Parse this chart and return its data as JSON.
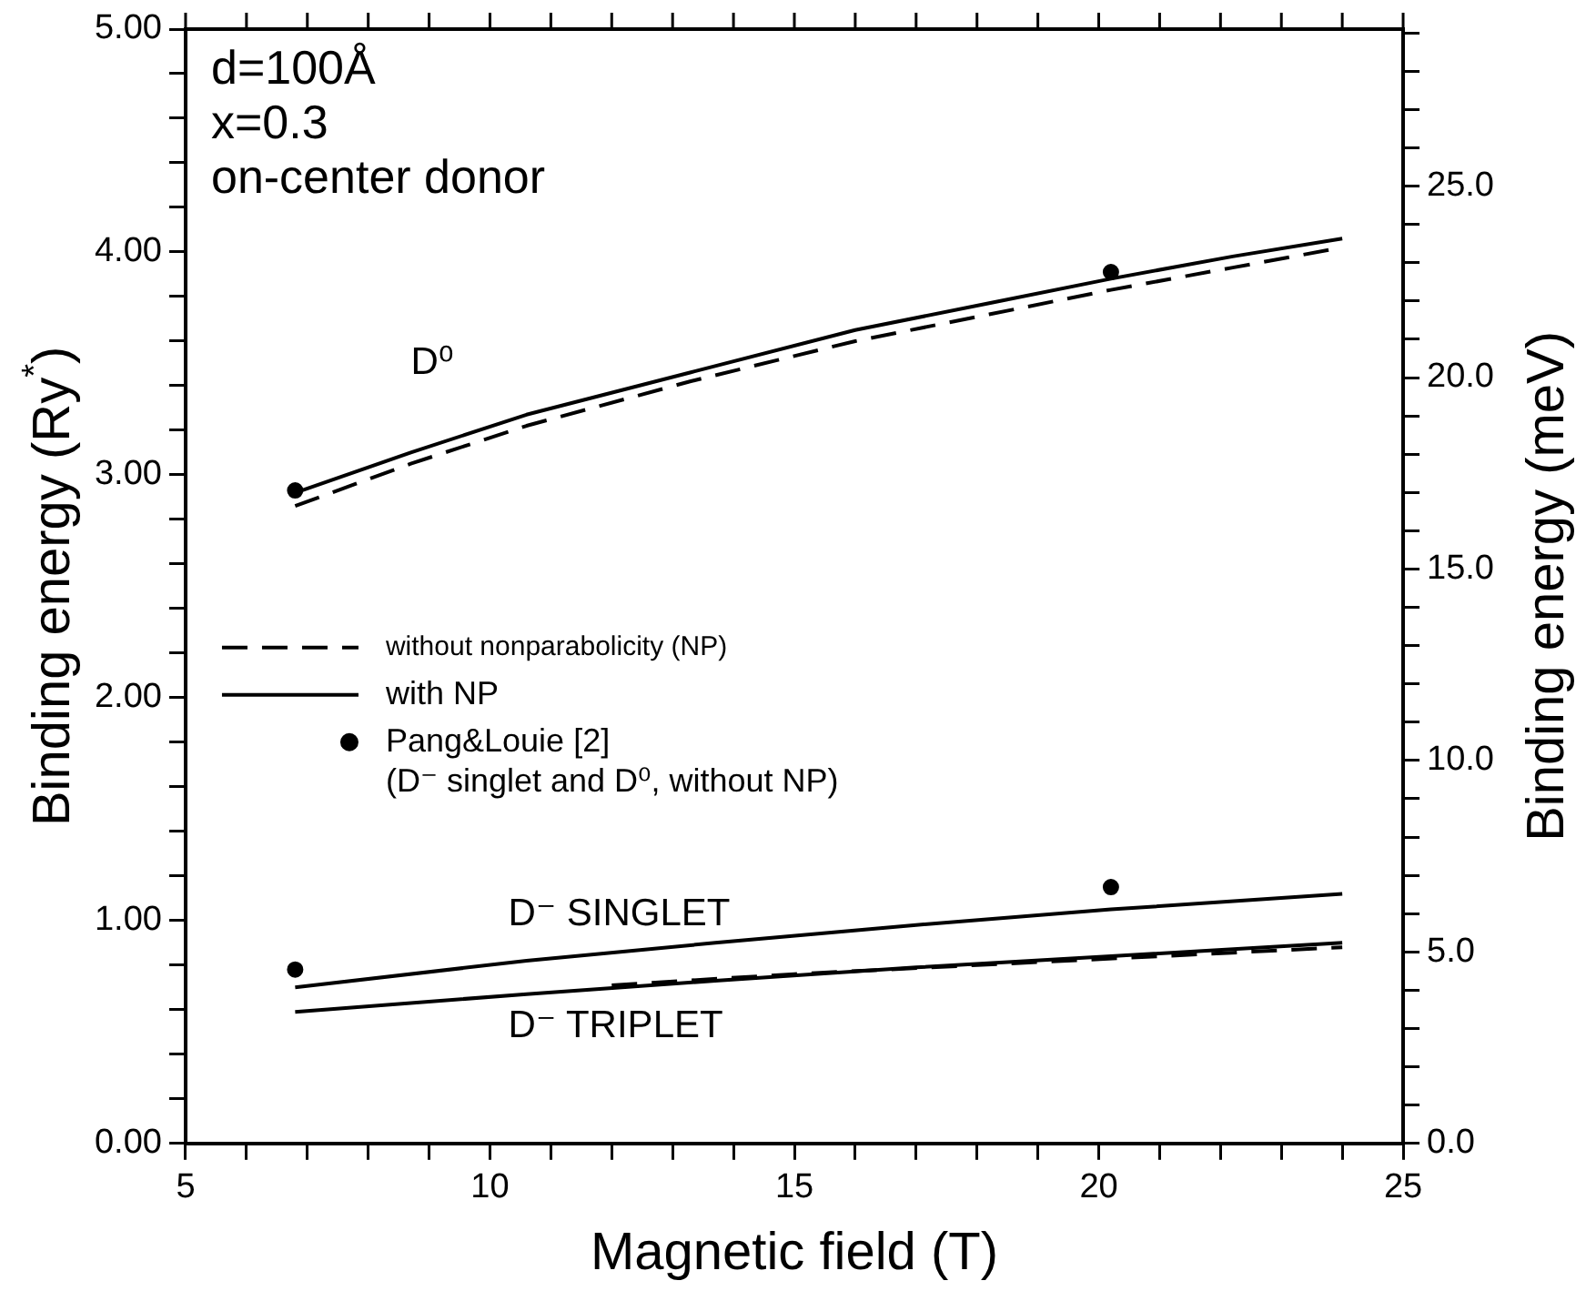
{
  "chart_data": {
    "type": "line",
    "xlabel": "Magnetic field (T)",
    "ylabel": "Binding energy (Ry$^{*}$)",
    "y2label": "Binding energy (meV)",
    "xlim": [
      5,
      25
    ],
    "ylim": [
      0,
      5
    ],
    "y2lim": [
      0,
      29.1
    ],
    "xticks": [
      5,
      {
        "value": 6,
        "label": null
      },
      {
        "value": 7,
        "label": null
      },
      {
        "value": 8,
        "label": null
      },
      {
        "value": 9,
        "label": null
      },
      10,
      {
        "value": 11,
        "label": null
      },
      {
        "value": 12,
        "label": null
      },
      {
        "value": 13,
        "label": null
      },
      {
        "value": 14,
        "label": null
      },
      15,
      {
        "value": 16,
        "label": null
      },
      {
        "value": 17,
        "label": null
      },
      {
        "value": 18,
        "label": null
      },
      {
        "value": 19,
        "label": null
      },
      20,
      {
        "value": 21,
        "label": null
      },
      {
        "value": 22,
        "label": null
      },
      {
        "value": 23,
        "label": null
      },
      {
        "value": 24,
        "label": null
      },
      25
    ],
    "yticks": [
      {
        "value": 0,
        "label": "0.00"
      },
      {
        "value": 0.2,
        "label": null
      },
      {
        "value": 0.4,
        "label": null
      },
      {
        "value": 0.6,
        "label": null
      },
      {
        "value": 0.8,
        "label": null
      },
      {
        "value": 1,
        "label": "1.00"
      },
      {
        "value": 1.2,
        "label": null
      },
      {
        "value": 1.4,
        "label": null
      },
      {
        "value": 1.6,
        "label": null
      },
      {
        "value": 1.8,
        "label": null
      },
      {
        "value": 2,
        "label": "2.00"
      },
      {
        "value": 2.2,
        "label": null
      },
      {
        "value": 2.4,
        "label": null
      },
      {
        "value": 2.6,
        "label": null
      },
      {
        "value": 2.8,
        "label": null
      },
      {
        "value": 3,
        "label": "3.00"
      },
      {
        "value": 3.2,
        "label": null
      },
      {
        "value": 3.4,
        "label": null
      },
      {
        "value": 3.6,
        "label": null
      },
      {
        "value": 3.8,
        "label": null
      },
      {
        "value": 4,
        "label": "4.00"
      },
      {
        "value": 4.2,
        "label": null
      },
      {
        "value": 4.4,
        "label": null
      },
      {
        "value": 4.6,
        "label": null
      },
      {
        "value": 4.8,
        "label": null
      },
      {
        "value": 5,
        "label": "5.00"
      }
    ],
    "y2ticks": [
      {
        "value": 0,
        "label": "0.0"
      },
      {
        "value": 1,
        "label": null
      },
      {
        "value": 2,
        "label": null
      },
      {
        "value": 3,
        "label": null
      },
      {
        "value": 4,
        "label": null
      },
      {
        "value": 5,
        "label": "5.0"
      },
      {
        "value": 6,
        "label": null
      },
      {
        "value": 7,
        "label": null
      },
      {
        "value": 8,
        "label": null
      },
      {
        "value": 9,
        "label": null
      },
      {
        "value": 10,
        "label": "10.0"
      },
      {
        "value": 11,
        "label": null
      },
      {
        "value": 12,
        "label": null
      },
      {
        "value": 13,
        "label": null
      },
      {
        "value": 14,
        "label": null
      },
      {
        "value": 15,
        "label": "15.0"
      },
      {
        "value": 16,
        "label": null
      },
      {
        "value": 17,
        "label": null
      },
      {
        "value": 18,
        "label": null
      },
      {
        "value": 19,
        "label": null
      },
      {
        "value": 20,
        "label": "20.0"
      },
      {
        "value": 21,
        "label": null
      },
      {
        "value": 22,
        "label": null
      },
      {
        "value": 23,
        "label": null
      },
      {
        "value": 24,
        "label": null
      },
      {
        "value": 25,
        "label": "25.0"
      },
      {
        "value": 26,
        "label": null
      },
      {
        "value": 27,
        "label": null
      },
      {
        "value": 28,
        "label": null
      },
      {
        "value": 29,
        "label": null
      }
    ],
    "grid": false,
    "legend": "left",
    "series": [
      {
        "name": "without nonparabolicity (NP)",
        "color": "#000000",
        "line_style": "dashed",
        "x": [
          6.8,
          8.7,
          10.6,
          13.3,
          16.0,
          18.2,
          20.2,
          22.2,
          24.0
        ],
        "values": [
          2.86,
          3.05,
          3.22,
          3.42,
          3.6,
          3.72,
          3.83,
          3.93,
          4.02
        ]
      },
      {
        "name": "with NP",
        "color": "#000000",
        "line_style": "solid",
        "x": [
          6.8,
          8.7,
          10.6,
          13.3,
          16.0,
          18.2,
          20.2,
          22.2,
          24.0
        ],
        "values": [
          2.92,
          3.1,
          3.27,
          3.46,
          3.65,
          3.77,
          3.88,
          3.98,
          4.06
        ]
      },
      {
        "color": "#000000",
        "line_style": "solid",
        "x": [
          6.8,
          10.6,
          13.7,
          17.0,
          20.2,
          24.0
        ],
        "values": [
          0.7,
          0.82,
          0.9,
          0.98,
          1.05,
          1.12
        ]
      },
      {
        "color": "#000000",
        "line_style": "solid",
        "x": [
          6.8,
          10.6,
          13.7,
          17.0,
          20.2,
          24.0
        ],
        "values": [
          0.59,
          0.67,
          0.73,
          0.79,
          0.84,
          0.9
        ]
      },
      {
        "color": "#000000",
        "line_style": "dashed",
        "x": [
          12.0,
          15.0,
          18.0,
          21.0,
          24.0
        ],
        "values": [
          0.71,
          0.76,
          0.8,
          0.84,
          0.88
        ]
      },
      {
        "name": "Pang&Louie [2]\n(D⁻ singlet and D⁰, without NP)",
        "type": "scatter",
        "marker": "circle",
        "color": "#000000",
        "x": [
          6.8,
          20.2,
          6.8,
          20.2
        ],
        "values": [
          2.93,
          3.91,
          0.78,
          1.15
        ]
      }
    ],
    "annotations": [
      "d=100Å",
      "x=0.3",
      "on-center donor",
      "D⁰",
      "D⁻ SINGLET",
      "D⁻ TRIPLET"
    ]
  }
}
